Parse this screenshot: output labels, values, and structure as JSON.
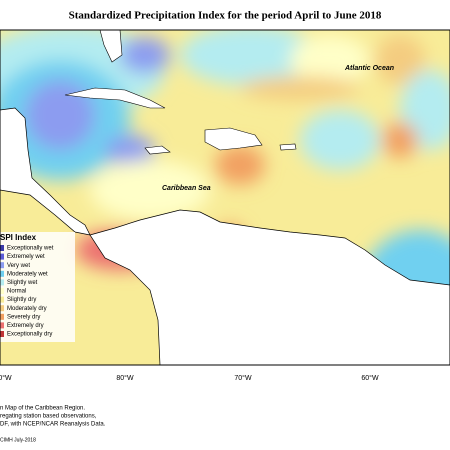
{
  "title": "Standardized Precipitation Index for the period April to June 2018",
  "labels": {
    "atlantic": "Atlantic Ocean",
    "caribbean": "Caribbean Sea"
  },
  "legend": {
    "title": "SPI Index",
    "items": [
      {
        "name": "Exceptionally wet",
        "color": "#3a3aa8"
      },
      {
        "name": "Extremely wet",
        "color": "#5c5cd8"
      },
      {
        "name": "Very wet",
        "color": "#8c9cf0"
      },
      {
        "name": "Moderately wet",
        "color": "#70d0f0"
      },
      {
        "name": "Slightly wet",
        "color": "#b4ecf0"
      },
      {
        "name": "Normal",
        "color": "#ffffc8"
      },
      {
        "name": "Slightly dry",
        "color": "#f8ec98"
      },
      {
        "name": "Moderately dry",
        "color": "#f4cc80"
      },
      {
        "name": "Severely dry",
        "color": "#f2a062"
      },
      {
        "name": "Extremely dry",
        "color": "#ec7070"
      },
      {
        "name": "Exceptionally dry",
        "color": "#c03434"
      }
    ]
  },
  "longitudes": [
    "0°W",
    "80°W",
    "70°W",
    "60°W"
  ],
  "footer": [
    "n Map of the Caribbean Region.",
    "regating station based observations,",
    "DF, with NCEP/NCAR Reanalysis Data.",
    "CIMH July-2018"
  ]
}
